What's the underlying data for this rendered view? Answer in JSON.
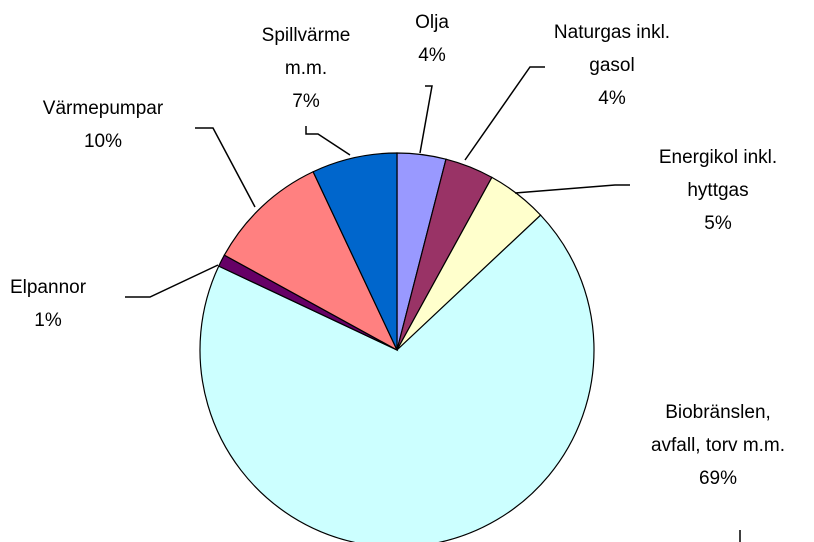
{
  "chart_data": {
    "type": "pie",
    "categories": [
      "Olja",
      "Naturgas inkl. gasol",
      "Energikol inkl. hyttgas",
      "Biobränslen, avfall, torv m.m.",
      "Elpannor",
      "Värmepumpar",
      "Spillvärme m.m."
    ],
    "values": [
      4,
      4,
      5,
      69,
      1,
      10,
      7
    ],
    "value_labels": [
      "4%",
      "4%",
      "5%",
      "69%",
      "1%",
      "10%",
      "7%"
    ],
    "colors": [
      "#9999FF",
      "#993366",
      "#FFFFCC",
      "#CCFFFF",
      "#660066",
      "#FF8080",
      "#0066CC"
    ]
  }
}
